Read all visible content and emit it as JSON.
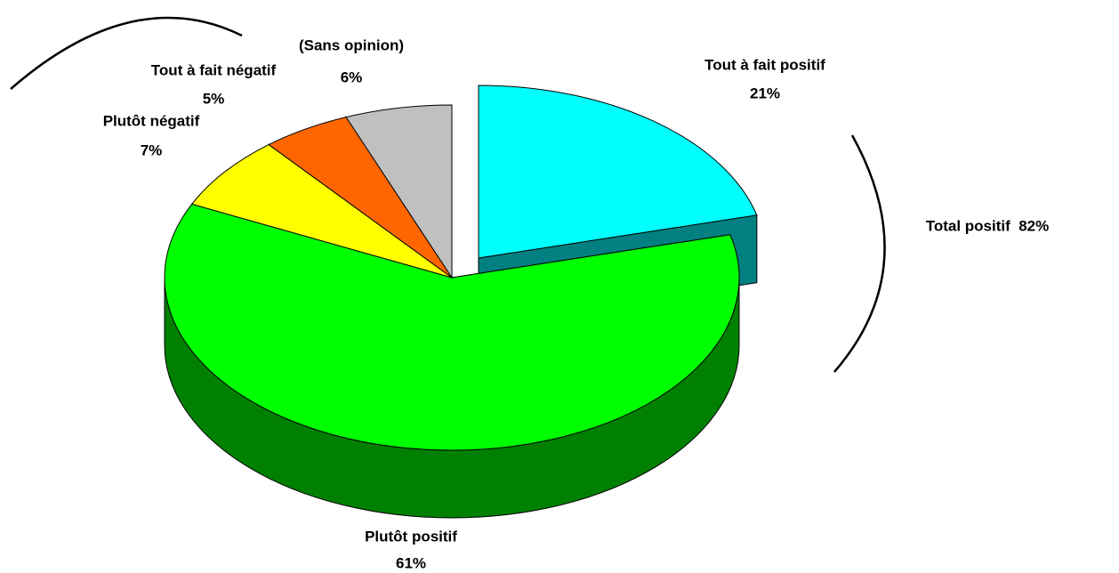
{
  "chart_data": {
    "type": "pie3d",
    "categories": [
      "Tout à fait positif",
      "Plutôt positif",
      "Plutôt négatif",
      "Tout à fait négatif",
      "(Sans opinion)"
    ],
    "values": [
      21,
      61,
      7,
      5,
      6
    ],
    "value_labels": [
      "21%",
      "61%",
      "7%",
      "5%",
      "6%"
    ],
    "colors": [
      "#00ffff",
      "#00ff00",
      "#ffff00",
      "#ff6600",
      "#c0c0c0"
    ],
    "side_colors": [
      "#008080",
      "#008000",
      "#808000",
      "#993300",
      "#808080"
    ],
    "annotation": "Total positif  82%"
  }
}
